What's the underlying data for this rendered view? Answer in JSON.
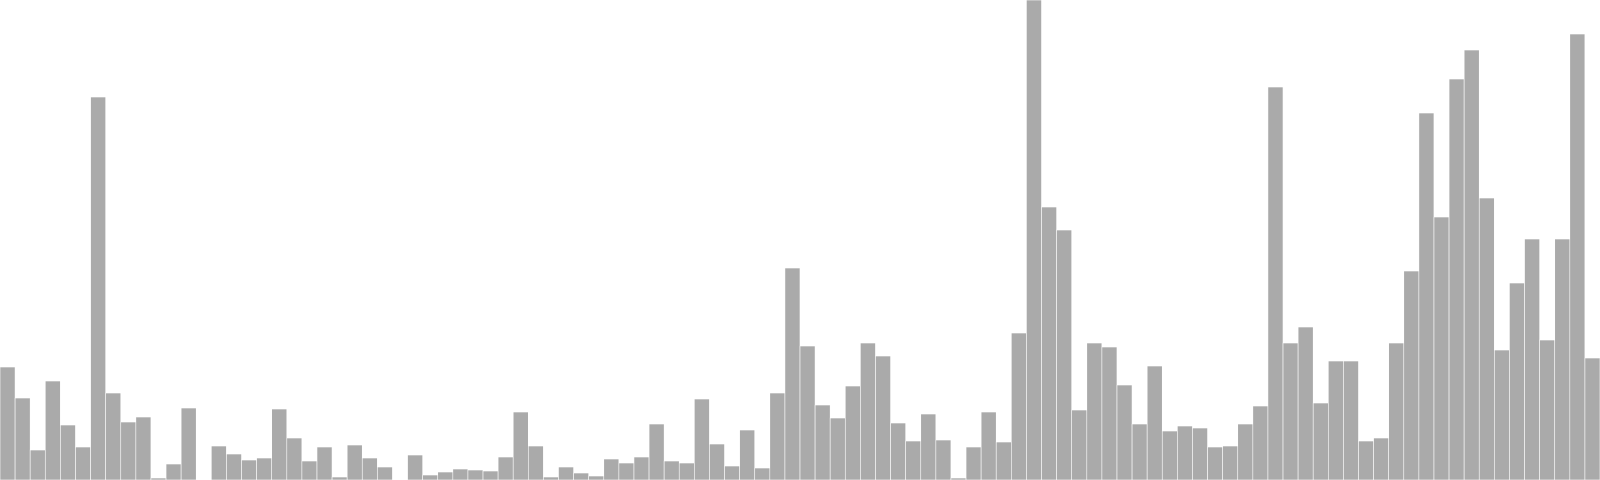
{
  "chart_data": {
    "type": "bar",
    "title": "",
    "xlabel": "",
    "ylabel": "",
    "grid": false,
    "legend": false,
    "ylim": [
      0,
      480
    ],
    "bar_color": "#aaaaaa",
    "values": [
      113,
      82,
      30,
      99,
      55,
      33,
      383,
      87,
      58,
      63,
      2,
      16,
      72,
      0,
      34,
      26,
      20,
      22,
      71,
      42,
      19,
      33,
      3,
      35,
      22,
      13,
      0,
      25,
      5,
      8,
      11,
      10,
      9,
      23,
      68,
      34,
      3,
      13,
      7,
      4,
      21,
      17,
      23,
      56,
      19,
      17,
      81,
      36,
      14,
      50,
      12,
      87,
      212,
      134,
      75,
      62,
      94,
      137,
      124,
      57,
      39,
      66,
      40,
      2,
      33,
      68,
      38,
      147,
      480,
      273,
      250,
      70,
      137,
      133,
      95,
      56,
      114,
      49,
      54,
      52,
      33,
      34,
      56,
      74,
      393,
      137,
      153,
      77,
      119,
      119,
      39,
      42,
      137,
      209,
      367,
      263,
      401,
      430,
      282,
      130,
      197,
      241,
      140,
      241,
      446,
      122
    ]
  }
}
